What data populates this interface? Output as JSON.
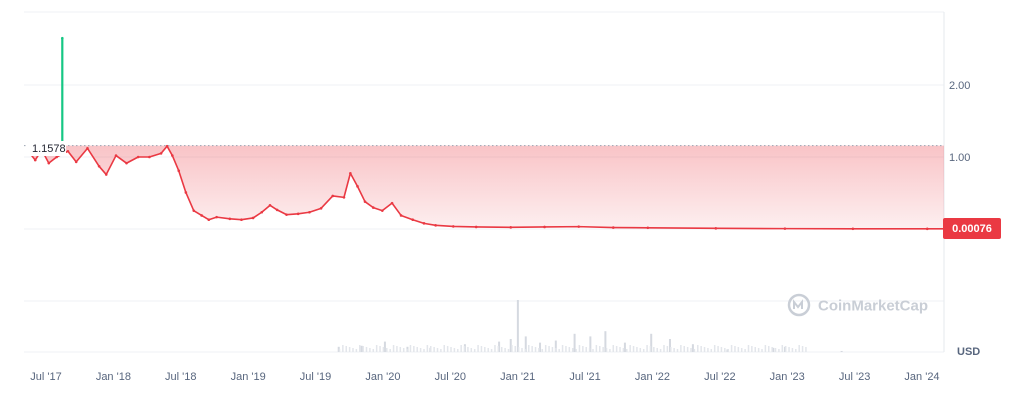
{
  "chart_data": {
    "type": "line",
    "currency": "USD",
    "x_ticks": [
      "Jul '17",
      "Jan '18",
      "Jul '18",
      "Jan '19",
      "Jul '19",
      "Jan '20",
      "Jul '20",
      "Jan '21",
      "Jul '21",
      "Jan '22",
      "Jul '22",
      "Jan '23",
      "Jul '23",
      "Jan '24"
    ],
    "y_ticks": [
      "2.00",
      "1.00"
    ],
    "reference_price": "1.1578",
    "current_price": "0.00076",
    "grid": true,
    "colors": {
      "line_down": "#ea3943",
      "line_up": "#16c784",
      "badge": "#ea3943",
      "volume": "#d5d9e0"
    },
    "watermark": "CoinMarketCap",
    "price_series": [
      {
        "x": "2017-07-01",
        "y": 1.05
      },
      {
        "x": "2017-07-15",
        "y": 0.95
      },
      {
        "x": "2017-08-01",
        "y": 1.1
      },
      {
        "x": "2017-08-20",
        "y": 0.9
      },
      {
        "x": "2017-09-10",
        "y": 1.0
      },
      {
        "x": "2017-09-25",
        "y": 2.65
      },
      {
        "x": "2017-10-10",
        "y": 1.08
      },
      {
        "x": "2017-11-01",
        "y": 0.92
      },
      {
        "x": "2017-12-01",
        "y": 1.12
      },
      {
        "x": "2018-01-01",
        "y": 0.85
      },
      {
        "x": "2018-01-20",
        "y": 0.72
      },
      {
        "x": "2018-02-15",
        "y": 1.02
      },
      {
        "x": "2018-03-15",
        "y": 0.9
      },
      {
        "x": "2018-04-15",
        "y": 1.0
      },
      {
        "x": "2018-05-15",
        "y": 1.0
      },
      {
        "x": "2018-06-15",
        "y": 1.05
      },
      {
        "x": "2018-07-01",
        "y": 1.15
      },
      {
        "x": "2018-07-15",
        "y": 1.02
      },
      {
        "x": "2018-08-01",
        "y": 0.78
      },
      {
        "x": "2018-08-20",
        "y": 0.45
      },
      {
        "x": "2018-09-10",
        "y": 0.2
      },
      {
        "x": "2018-10-01",
        "y": 0.14
      },
      {
        "x": "2018-10-20",
        "y": 0.09
      },
      {
        "x": "2018-11-10",
        "y": 0.12
      },
      {
        "x": "2018-12-15",
        "y": 0.1
      },
      {
        "x": "2019-01-15",
        "y": 0.09
      },
      {
        "x": "2019-02-15",
        "y": 0.11
      },
      {
        "x": "2019-03-10",
        "y": 0.18
      },
      {
        "x": "2019-04-01",
        "y": 0.27
      },
      {
        "x": "2019-04-20",
        "y": 0.21
      },
      {
        "x": "2019-05-15",
        "y": 0.15
      },
      {
        "x": "2019-06-15",
        "y": 0.16
      },
      {
        "x": "2019-07-15",
        "y": 0.18
      },
      {
        "x": "2019-08-15",
        "y": 0.23
      },
      {
        "x": "2019-09-15",
        "y": 0.4
      },
      {
        "x": "2019-10-15",
        "y": 0.38
      },
      {
        "x": "2019-11-01",
        "y": 0.74
      },
      {
        "x": "2019-11-20",
        "y": 0.54
      },
      {
        "x": "2019-12-10",
        "y": 0.32
      },
      {
        "x": "2020-01-01",
        "y": 0.24
      },
      {
        "x": "2020-01-25",
        "y": 0.2
      },
      {
        "x": "2020-02-20",
        "y": 0.3
      },
      {
        "x": "2020-03-15",
        "y": 0.14
      },
      {
        "x": "2020-04-15",
        "y": 0.09
      },
      {
        "x": "2020-05-15",
        "y": 0.05
      },
      {
        "x": "2020-06-15",
        "y": 0.03
      },
      {
        "x": "2020-08-01",
        "y": 0.02
      },
      {
        "x": "2020-10-01",
        "y": 0.015
      },
      {
        "x": "2021-01-01",
        "y": 0.012
      },
      {
        "x": "2021-04-01",
        "y": 0.015
      },
      {
        "x": "2021-07-01",
        "y": 0.018
      },
      {
        "x": "2021-10-01",
        "y": 0.01
      },
      {
        "x": "2022-01-01",
        "y": 0.008
      },
      {
        "x": "2022-07-01",
        "y": 0.004
      },
      {
        "x": "2023-01-01",
        "y": 0.002
      },
      {
        "x": "2023-07-01",
        "y": 0.001
      },
      {
        "x": "2024-01-15",
        "y": 0.00076
      }
    ],
    "volume_series": [
      {
        "x": "2019-10-01",
        "y": 0.1
      },
      {
        "x": "2019-12-01",
        "y": 0.12
      },
      {
        "x": "2020-02-01",
        "y": 0.2
      },
      {
        "x": "2020-04-01",
        "y": 0.1
      },
      {
        "x": "2020-06-01",
        "y": 0.08
      },
      {
        "x": "2020-09-01",
        "y": 0.15
      },
      {
        "x": "2020-12-01",
        "y": 0.2
      },
      {
        "x": "2021-01-01",
        "y": 0.25
      },
      {
        "x": "2021-01-20",
        "y": 1.0
      },
      {
        "x": "2021-02-10",
        "y": 0.3
      },
      {
        "x": "2021-03-20",
        "y": 0.18
      },
      {
        "x": "2021-05-01",
        "y": 0.22
      },
      {
        "x": "2021-06-20",
        "y": 0.35
      },
      {
        "x": "2021-08-01",
        "y": 0.3
      },
      {
        "x": "2021-09-10",
        "y": 0.4
      },
      {
        "x": "2021-11-01",
        "y": 0.18
      },
      {
        "x": "2022-01-10",
        "y": 0.35
      },
      {
        "x": "2022-03-01",
        "y": 0.25
      },
      {
        "x": "2022-05-01",
        "y": 0.15
      },
      {
        "x": "2022-08-01",
        "y": 0.05
      },
      {
        "x": "2022-12-01",
        "y": 0.08
      },
      {
        "x": "2023-01-01",
        "y": 0.1
      },
      {
        "x": "2023-06-01",
        "y": 0.02
      }
    ]
  }
}
